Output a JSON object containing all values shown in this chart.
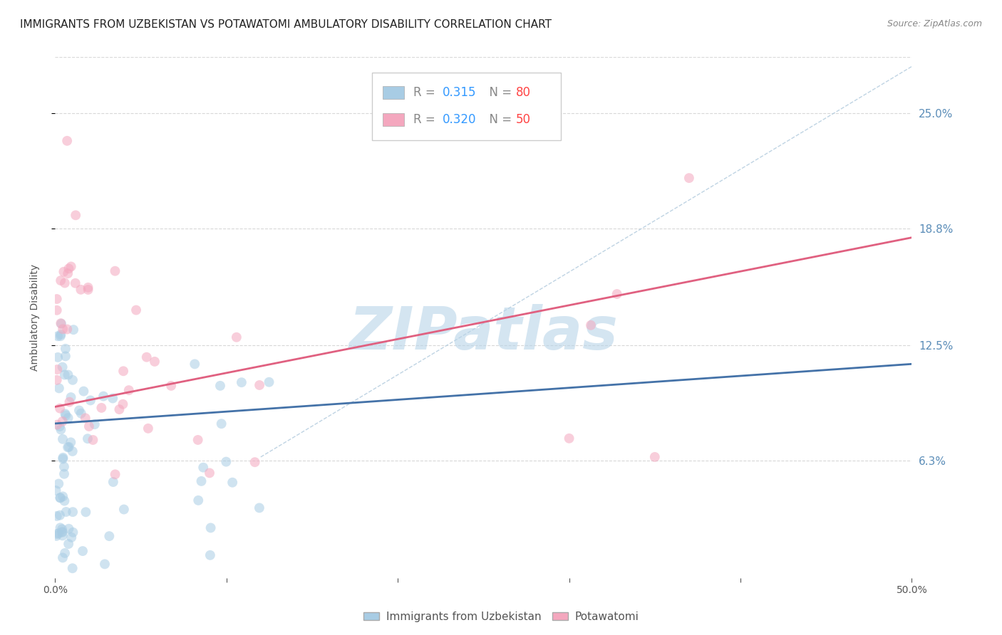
{
  "title": "IMMIGRANTS FROM UZBEKISTAN VS POTAWATOMI AMBULATORY DISABILITY CORRELATION CHART",
  "source": "Source: ZipAtlas.com",
  "ylabel": "Ambulatory Disability",
  "legend_label1": "Immigrants from Uzbekistan",
  "legend_label2": "Potawatomi",
  "R1": 0.315,
  "N1": 80,
  "R2": 0.32,
  "N2": 50,
  "color_blue": "#a8cce4",
  "color_pink": "#f4a7be",
  "color_blue_line": "#4472a8",
  "color_pink_line": "#e06080",
  "color_axis_labels": "#5b8db8",
  "color_diag": "#b8cfe0",
  "xlim": [
    0.0,
    0.5
  ],
  "ylim": [
    0.0,
    0.28
  ],
  "yticks": [
    0.063,
    0.125,
    0.188,
    0.25
  ],
  "ytick_labels": [
    "6.3%",
    "12.5%",
    "18.8%",
    "25.0%"
  ],
  "xtick_left_label": "0.0%",
  "xtick_right_label": "50.0%",
  "blue_line_x": [
    0.0,
    0.5
  ],
  "blue_line_y": [
    0.083,
    0.115
  ],
  "pink_line_x": [
    0.0,
    0.5
  ],
  "pink_line_y": [
    0.092,
    0.183
  ],
  "diag_line_x": [
    0.12,
    0.5
  ],
  "diag_line_y": [
    0.065,
    0.275
  ],
  "watermark": "ZIPatlas",
  "watermark_color": "#b8d4e8",
  "background_color": "#ffffff",
  "grid_color": "#d8d8d8",
  "title_fontsize": 11,
  "axis_label_fontsize": 10,
  "tick_fontsize": 10,
  "legend_fontsize": 12,
  "dot_size": 100,
  "dot_alpha": 0.55
}
